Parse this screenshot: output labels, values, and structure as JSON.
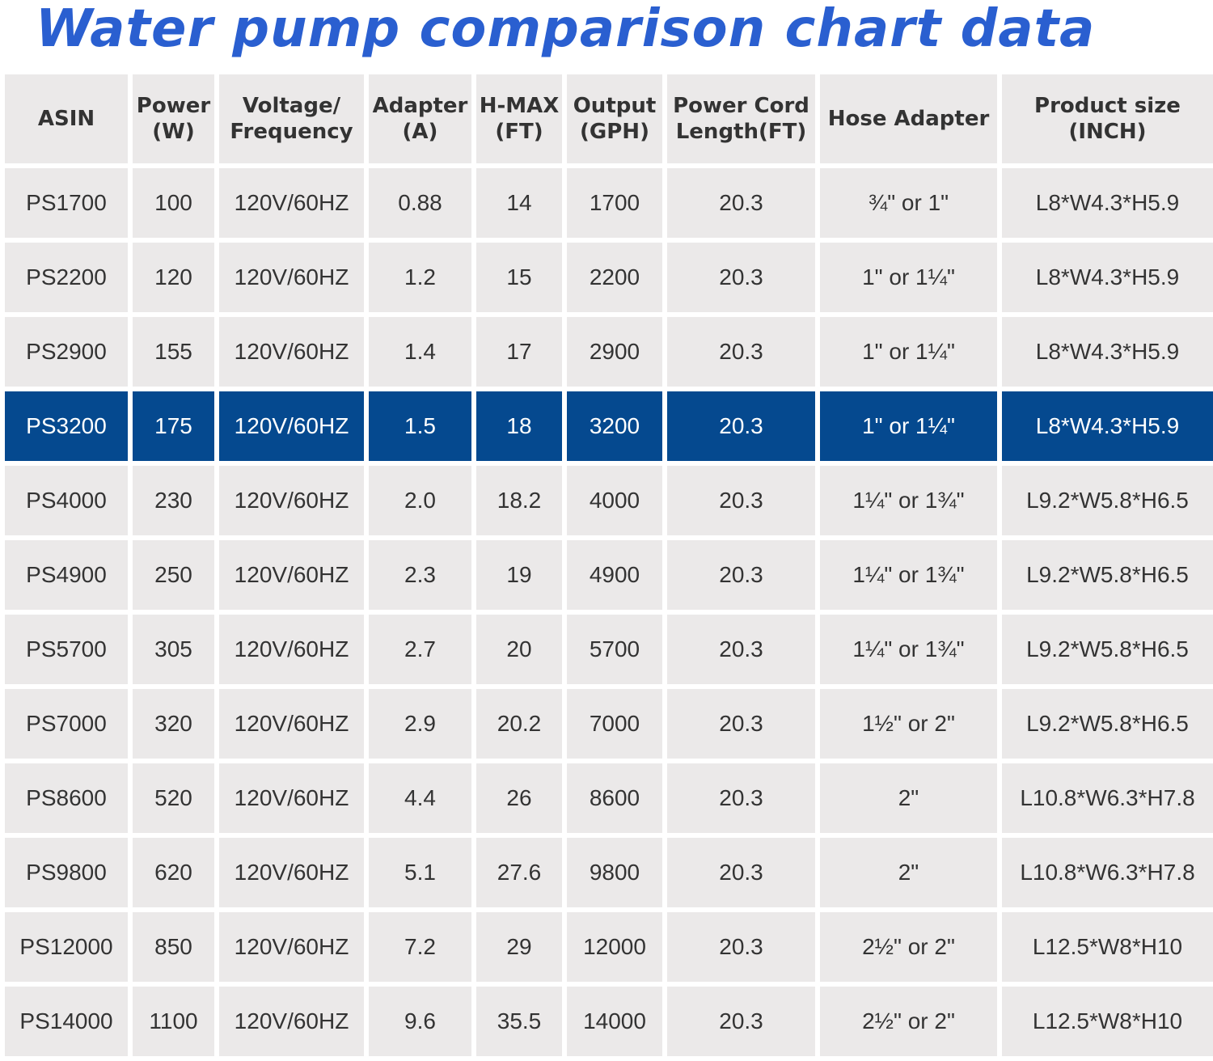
{
  "title": "Water pump comparison chart data",
  "colors": {
    "title": "#2a5fd0",
    "cell_bg": "#ebe9e9",
    "highlight_bg": "#05498f",
    "highlight_text": "#ffffff"
  },
  "chart_data": {
    "type": "table",
    "title": "Water pump comparison chart data",
    "columns": [
      "ASIN",
      "Power\n(W)",
      "Voltage/\nFrequency",
      "Adapter\n(A)",
      "H-MAX\n(FT)",
      "Output\n(GPH)",
      "Power Cord\nLength(FT)",
      "Hose Adapter",
      "Product size\n(INCH)"
    ],
    "highlighted_row": 3,
    "rows": [
      [
        "PS1700",
        "100",
        "120V/60HZ",
        "0.88",
        "14",
        "1700",
        "20.3",
        "¾\" or 1\"",
        "L8*W4.3*H5.9"
      ],
      [
        "PS2200",
        "120",
        "120V/60HZ",
        "1.2",
        "15",
        "2200",
        "20.3",
        "1\" or 1¼\"",
        "L8*W4.3*H5.9"
      ],
      [
        "PS2900",
        "155",
        "120V/60HZ",
        "1.4",
        "17",
        "2900",
        "20.3",
        "1\" or 1¼\"",
        "L8*W4.3*H5.9"
      ],
      [
        "PS3200",
        "175",
        "120V/60HZ",
        "1.5",
        "18",
        "3200",
        "20.3",
        "1\" or 1¼\"",
        "L8*W4.3*H5.9"
      ],
      [
        "PS4000",
        "230",
        "120V/60HZ",
        "2.0",
        "18.2",
        "4000",
        "20.3",
        "1¼\" or 1¾\"",
        "L9.2*W5.8*H6.5"
      ],
      [
        "PS4900",
        "250",
        "120V/60HZ",
        "2.3",
        "19",
        "4900",
        "20.3",
        "1¼\" or 1¾\"",
        "L9.2*W5.8*H6.5"
      ],
      [
        "PS5700",
        "305",
        "120V/60HZ",
        "2.7",
        "20",
        "5700",
        "20.3",
        "1¼\" or 1¾\"",
        "L9.2*W5.8*H6.5"
      ],
      [
        "PS7000",
        "320",
        "120V/60HZ",
        "2.9",
        "20.2",
        "7000",
        "20.3",
        "1½\" or 2\"",
        "L9.2*W5.8*H6.5"
      ],
      [
        "PS8600",
        "520",
        "120V/60HZ",
        "4.4",
        "26",
        "8600",
        "20.3",
        "2\"",
        "L10.8*W6.3*H7.8"
      ],
      [
        "PS9800",
        "620",
        "120V/60HZ",
        "5.1",
        "27.6",
        "9800",
        "20.3",
        "2\"",
        "L10.8*W6.3*H7.8"
      ],
      [
        "PS12000",
        "850",
        "120V/60HZ",
        "7.2",
        "29",
        "12000",
        "20.3",
        "2½\" or 2\"",
        "L12.5*W8*H10"
      ],
      [
        "PS14000",
        "1100",
        "120V/60HZ",
        "9.6",
        "35.5",
        "14000",
        "20.3",
        "2½\" or 2\"",
        "L12.5*W8*H10"
      ]
    ]
  }
}
